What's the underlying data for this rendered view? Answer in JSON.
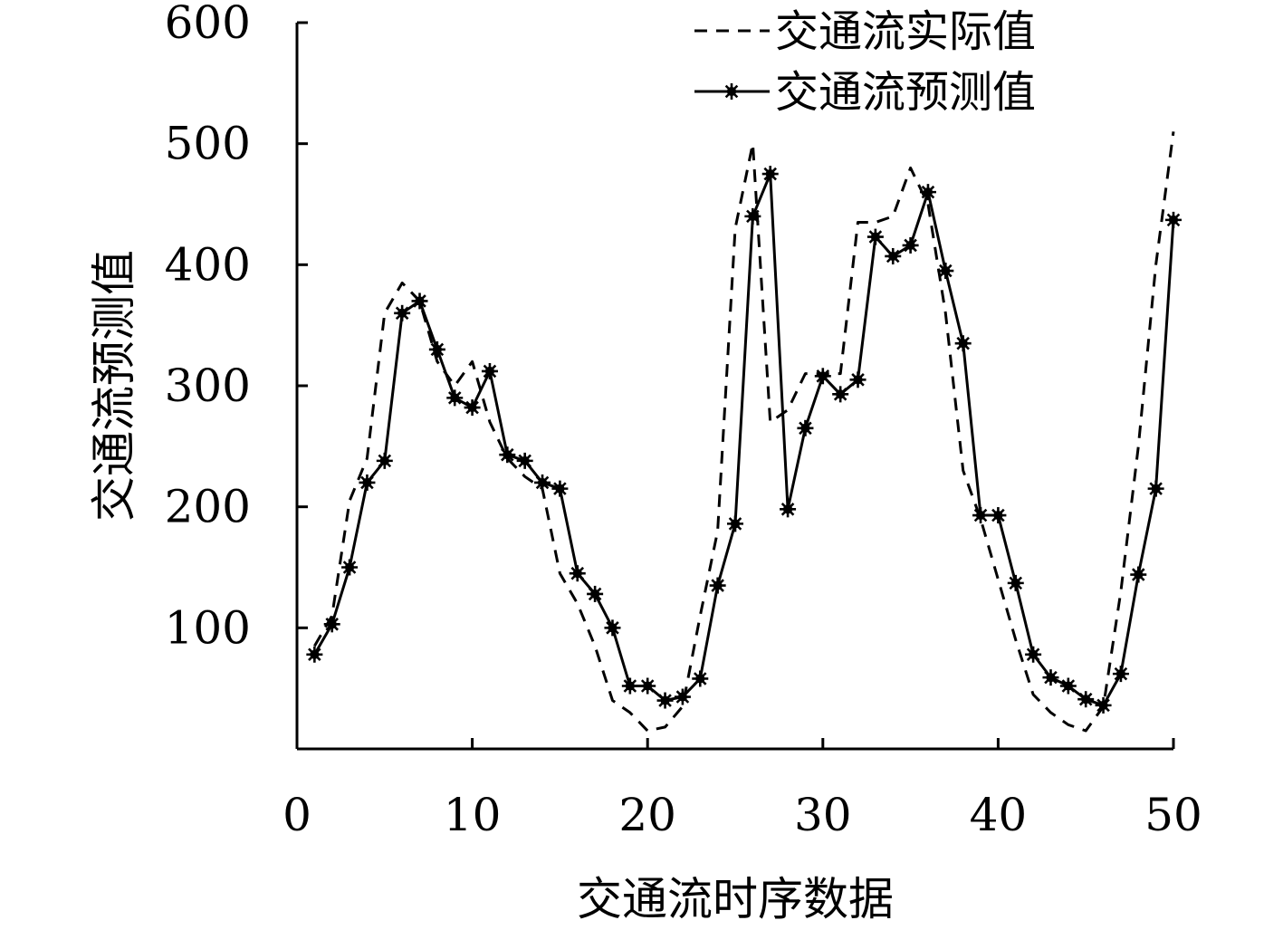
{
  "chart_data": {
    "type": "line",
    "xlabel": "交通流时序数据",
    "ylabel": "交通流预测值",
    "xlim": [
      0,
      50
    ],
    "ylim": [
      0,
      600
    ],
    "xticks": [
      0,
      10,
      20,
      30,
      40,
      50
    ],
    "yticks": [
      100,
      200,
      300,
      400,
      500,
      600
    ],
    "xtick_labels": [
      "0",
      "10",
      "20",
      "30",
      "40",
      "50"
    ],
    "ytick_labels": [
      "100",
      "200",
      "300",
      "400",
      "500",
      "600"
    ],
    "grid": false,
    "legend": "top-right",
    "series": [
      {
        "name": "交通流实际值",
        "style": "dashed",
        "color": "#000000",
        "x": [
          1,
          2,
          3,
          4,
          5,
          6,
          7,
          8,
          9,
          10,
          11,
          12,
          13,
          14,
          15,
          16,
          17,
          18,
          19,
          20,
          21,
          22,
          23,
          24,
          25,
          26,
          27,
          28,
          29,
          30,
          31,
          32,
          33,
          34,
          35,
          36,
          37,
          38,
          39,
          40,
          41,
          42,
          43,
          44,
          45,
          46,
          47,
          48,
          49,
          50
        ],
        "values": [
          85,
          110,
          205,
          240,
          360,
          385,
          370,
          320,
          300,
          320,
          270,
          240,
          225,
          215,
          145,
          120,
          85,
          40,
          30,
          15,
          18,
          35,
          110,
          180,
          430,
          500,
          270,
          280,
          310,
          310,
          310,
          435,
          435,
          440,
          480,
          450,
          360,
          230,
          190,
          140,
          90,
          45,
          30,
          20,
          15,
          35,
          130,
          250,
          400,
          510
        ]
      },
      {
        "name": "交通流预测值",
        "style": "solid-asterisk",
        "color": "#000000",
        "x": [
          1,
          2,
          3,
          4,
          5,
          6,
          7,
          8,
          9,
          10,
          11,
          12,
          13,
          14,
          15,
          16,
          17,
          18,
          19,
          20,
          21,
          22,
          23,
          24,
          25,
          26,
          27,
          28,
          29,
          30,
          31,
          32,
          33,
          34,
          35,
          36,
          37,
          38,
          39,
          40,
          41,
          42,
          43,
          44,
          45,
          46,
          47,
          48,
          49,
          50
        ],
        "values": [
          78,
          103,
          150,
          220,
          238,
          360,
          370,
          330,
          290,
          282,
          312,
          243,
          238,
          220,
          215,
          145,
          128,
          100,
          52,
          52,
          40,
          43,
          58,
          135,
          186,
          440,
          475,
          198,
          265,
          308,
          293,
          305,
          423,
          407,
          416,
          460,
          395,
          335,
          193,
          193,
          137,
          78,
          59,
          52,
          41,
          36,
          62,
          144,
          215,
          437
        ]
      }
    ]
  }
}
